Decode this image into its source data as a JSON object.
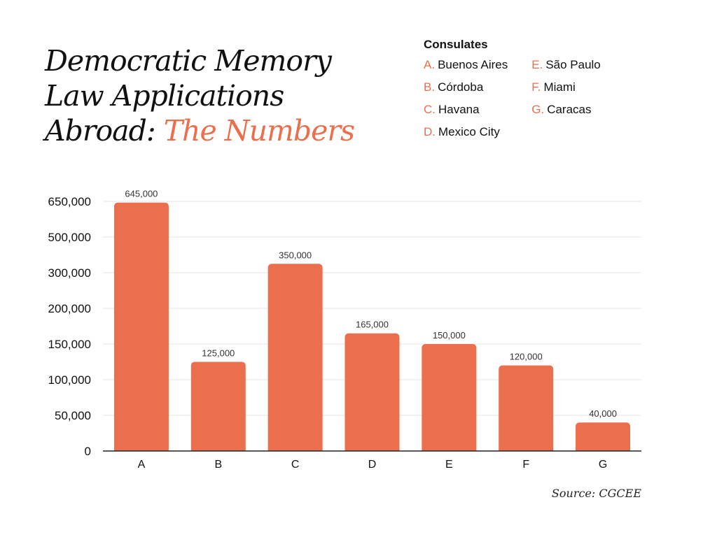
{
  "title": {
    "line1": "Democratic Memory",
    "line2": "Law Applications",
    "line3_prefix": "Abroad: ",
    "line3_accent": "The Numbers"
  },
  "legend": {
    "title": "Consulates",
    "items": [
      {
        "key": "A.",
        "label": "Buenos Aires"
      },
      {
        "key": "B.",
        "label": "Córdoba"
      },
      {
        "key": "C.",
        "label": "Havana"
      },
      {
        "key": "D.",
        "label": "Mexico City"
      },
      {
        "key": "E.",
        "label": "São Paulo"
      },
      {
        "key": "F.",
        "label": "Miami"
      },
      {
        "key": "G.",
        "label": "Caracas"
      }
    ]
  },
  "source": "Source: CGCEE",
  "colors": {
    "bar": "#EB6F4C",
    "grid": "#e6e6e6",
    "axis": "#222222"
  },
  "chart_data": {
    "type": "bar",
    "categories": [
      "A",
      "B",
      "C",
      "D",
      "E",
      "F",
      "G"
    ],
    "values": [
      645000,
      125000,
      350000,
      165000,
      150000,
      120000,
      40000
    ],
    "data_labels": [
      "645,000",
      "125,000",
      "350,000",
      "165,000",
      "150,000",
      "120,000",
      "40,000"
    ],
    "y_ticks": [
      0,
      50000,
      100000,
      150000,
      200000,
      300000,
      500000,
      650000
    ],
    "y_tick_labels": [
      "0",
      "50,000",
      "100,000",
      "150,000",
      "200,000",
      "300,000",
      "500,000",
      "650,000"
    ],
    "ylim": [
      0,
      650000
    ],
    "grid": true,
    "legend_placement": "top-right"
  }
}
